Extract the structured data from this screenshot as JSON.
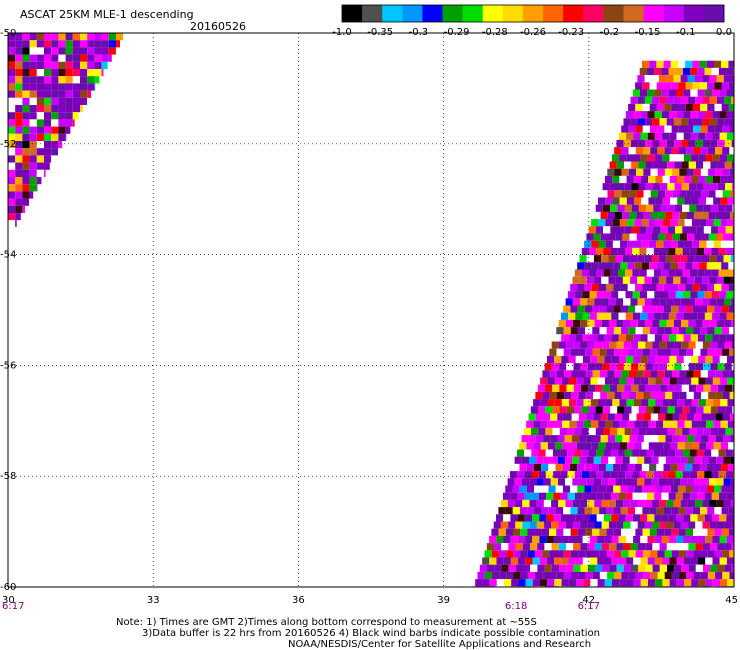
{
  "header": {
    "title": "ASCAT 25KM MLE-1 descending",
    "date": "20160526"
  },
  "colorbar": {
    "colors": [
      "#000000",
      "#505050",
      "#00c8ff",
      "#0096ff",
      "#0000ff",
      "#00a000",
      "#00dc00",
      "#ffff00",
      "#ffdc00",
      "#ffa000",
      "#ff6400",
      "#ff0000",
      "#ff0064",
      "#8b4513",
      "#d2691e",
      "#ff00ff",
      "#c800ff",
      "#8000c0",
      "#6a0dad"
    ],
    "labels": [
      "-1.0",
      "-0.35",
      "-0.3",
      "-0.29",
      "-0.28",
      "-0.26",
      "-0.23",
      "-0.2",
      "-0.15",
      "-0.1",
      "0.0"
    ]
  },
  "chart_data": {
    "type": "heatmap",
    "title": "ASCAT 25KM MLE-1 descending",
    "xlabel": "",
    "ylabel": "",
    "xlim": [
      30,
      45
    ],
    "ylim": [
      -60,
      -50
    ],
    "x_ticks": [
      "30",
      "33",
      "36",
      "39",
      "42",
      "45"
    ],
    "y_ticks": [
      "-50",
      "-52",
      "-54",
      "-56",
      "-58",
      "-60"
    ],
    "grid": true,
    "swath_times": [
      {
        "label": "6:17",
        "lon": 30
      },
      {
        "label": "6:18",
        "lon": 40.5
      },
      {
        "label": "6:17",
        "lon": 42
      }
    ],
    "swaths": [
      {
        "name": "west",
        "lat_top": -50,
        "lat_bottom": -53.5,
        "lon_left": 30,
        "lon_right_top": 32.4,
        "lon_right_bottom": 30.1
      },
      {
        "name": "east",
        "lat_top": -50.5,
        "lat_bottom": -60,
        "lon_left_top": 43.1,
        "lon_left_bottom": 39.6,
        "lon_right": 45
      }
    ]
  },
  "notes": {
    "line1": "Note: 1) Times are GMT 2)Times along bottom correspond to measurement at ~55S",
    "line2": "3)Data buffer is 22 hrs from 20160526 4) Black wind barbs indicate possible contamination",
    "line3": "NOAA/NESDIS/Center for Satellite Applications and Research"
  }
}
